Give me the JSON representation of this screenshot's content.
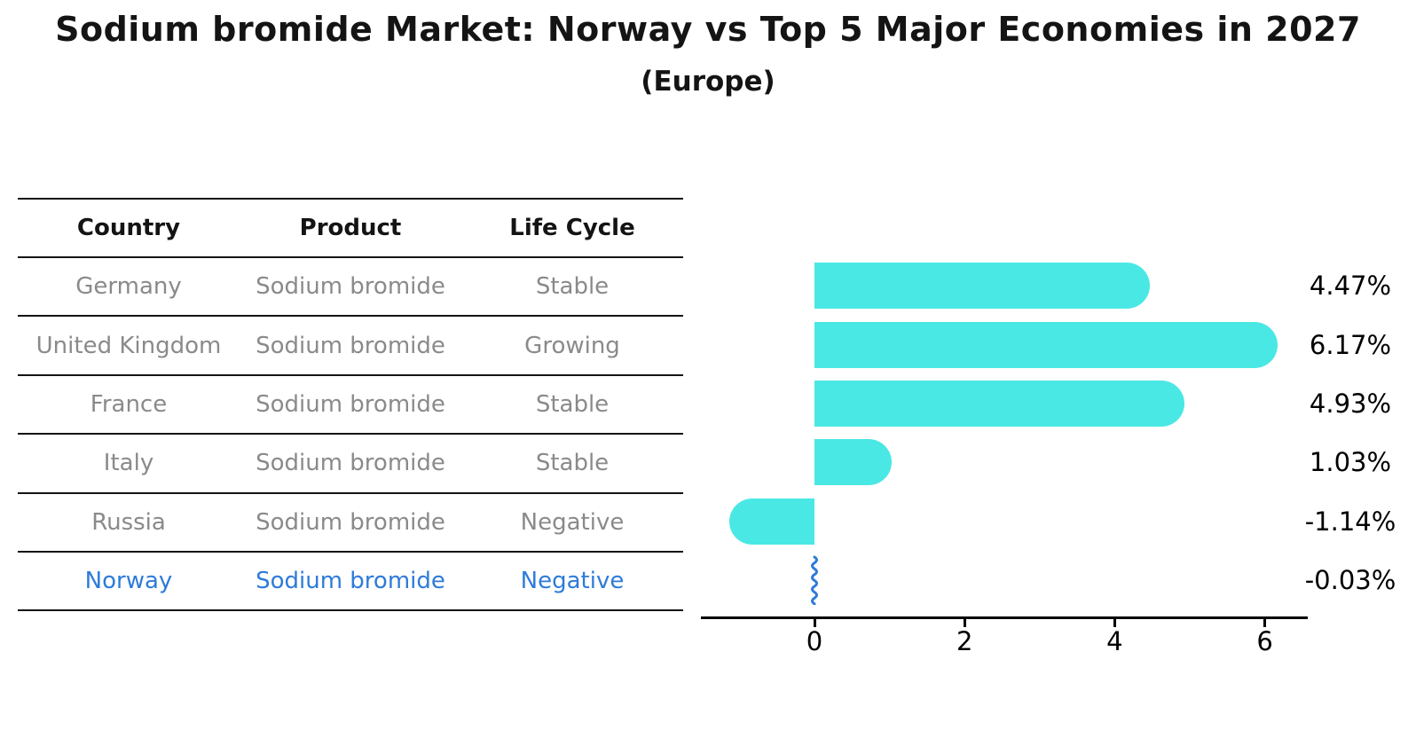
{
  "title": "Sodium bromide Market: Norway vs Top 5 Major Economies in 2027",
  "subtitle": "(Europe)",
  "table": {
    "columns": [
      "Country",
      "Product",
      "Life Cycle"
    ],
    "rows": [
      {
        "country": "Germany",
        "product": "Sodium bromide",
        "life_cycle": "Stable",
        "highlight": false
      },
      {
        "country": "United Kingdom",
        "product": "Sodium bromide",
        "life_cycle": "Growing",
        "highlight": false
      },
      {
        "country": "France",
        "product": "Sodium bromide",
        "life_cycle": "Stable",
        "highlight": false
      },
      {
        "country": "Italy",
        "product": "Sodium bromide",
        "life_cycle": "Stable",
        "highlight": false
      },
      {
        "country": "Russia",
        "product": "Sodium bromide",
        "life_cycle": "Negative",
        "highlight": false
      },
      {
        "country": "Norway",
        "product": "Sodium bromide",
        "life_cycle": "Negative",
        "highlight": true
      }
    ]
  },
  "chart_data": {
    "type": "bar",
    "orientation": "horizontal",
    "title": "Sodium bromide Market: Norway vs Top 5 Major Economies in 2027",
    "subtitle": "(Europe)",
    "categories": [
      "Germany",
      "United Kingdom",
      "France",
      "Italy",
      "Russia",
      "Norway"
    ],
    "values": [
      4.47,
      6.17,
      4.93,
      1.03,
      -1.14,
      -0.03
    ],
    "value_labels": [
      "4.47%",
      "6.17%",
      "4.93%",
      "1.03%",
      "-1.14%",
      "-0.03%"
    ],
    "xlabel": "",
    "ylabel": "",
    "xticks": [
      0,
      2,
      4,
      6
    ],
    "xlim": [
      -1.53,
      6.57
    ],
    "grid": false,
    "legend": false,
    "bar_color": "#4AE8E4",
    "highlight_color": "#2E7BD9",
    "axis_color": "#000000"
  },
  "colors": {
    "background": "#ffffff",
    "header_text": "#141414",
    "table_text": "#8a8a8a",
    "highlight_blue": "#2E7BD9",
    "bar_cyan": "#4AE8E4"
  }
}
